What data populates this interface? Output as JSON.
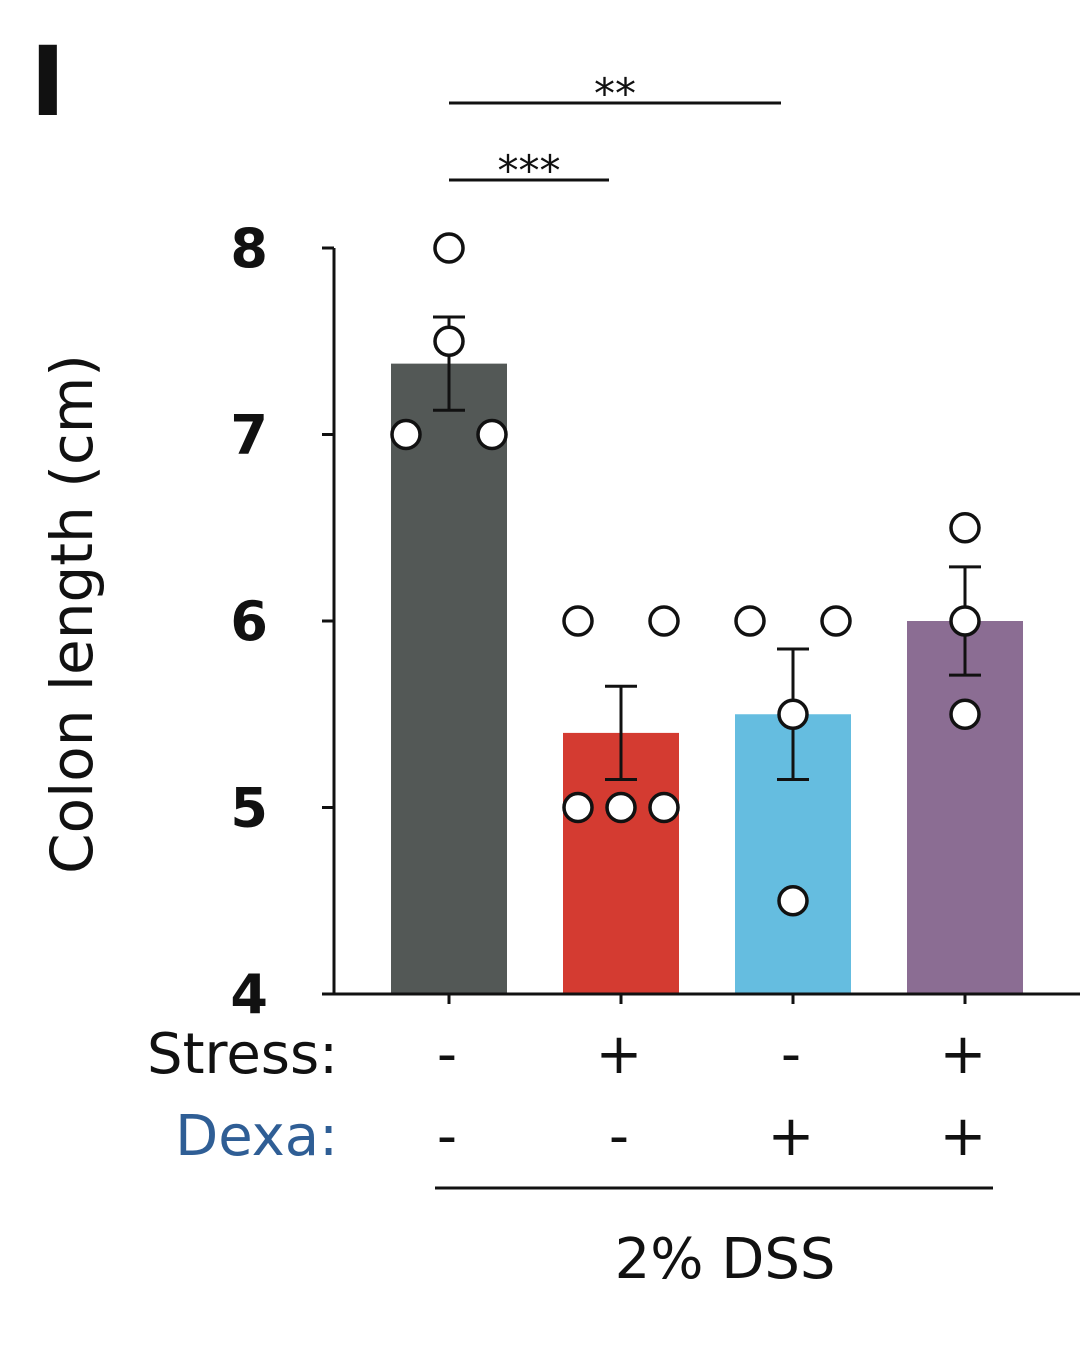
{
  "panel_label": "I",
  "colors": {
    "axis": "#111111",
    "dexa_label": "#2f5e95",
    "point_fill": "#ffffff"
  },
  "chart_data": {
    "type": "bar",
    "title": "",
    "ylabel": "Colon length (cm)",
    "ylim": [
      4,
      8
    ],
    "yticks": [
      "4",
      "5",
      "6",
      "7",
      "8"
    ],
    "grid": false,
    "legend": "none",
    "error_bars": "sem",
    "groups": [
      {
        "stress": "-",
        "dexa": "-",
        "value": 7.38,
        "err_low": 7.13,
        "err_high": 7.63,
        "color": "#535856",
        "points": [
          8.0,
          7.5,
          7.0,
          7.0
        ]
      },
      {
        "stress": "+",
        "dexa": "-",
        "value": 5.4,
        "err_low": 5.15,
        "err_high": 5.65,
        "color": "#d43b31",
        "points": [
          6.0,
          6.0,
          5.0,
          5.0,
          5.0
        ]
      },
      {
        "stress": "-",
        "dexa": "+",
        "value": 5.5,
        "err_low": 5.15,
        "err_high": 5.85,
        "color": "#65bde0",
        "points": [
          6.0,
          6.0,
          5.5,
          4.5
        ]
      },
      {
        "stress": "+",
        "dexa": "+",
        "value": 6.0,
        "err_low": 5.71,
        "err_high": 6.29,
        "color": "#8b6d93",
        "points": [
          6.5,
          6.0,
          5.5
        ]
      }
    ],
    "condition_rows": {
      "stress_label": "Stress:",
      "dexa_label": "Dexa:"
    },
    "footer": "2% DSS",
    "significance": [
      {
        "from": 0,
        "to": 1,
        "label": "***"
      },
      {
        "from": 0,
        "to": 2,
        "label": "**"
      }
    ]
  }
}
